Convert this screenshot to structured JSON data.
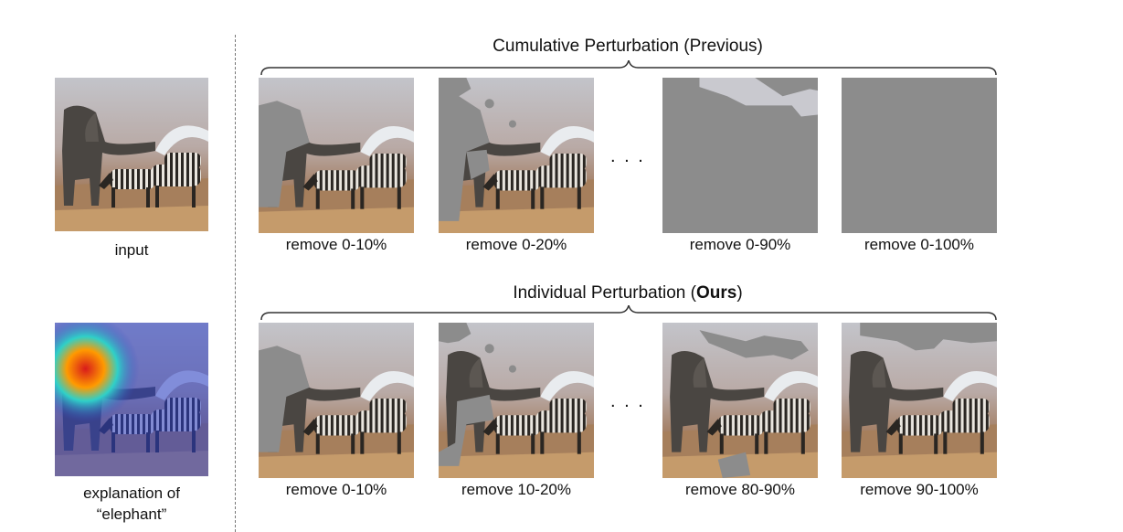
{
  "left": {
    "input_label": "input",
    "explanation_label_line1": "explanation of",
    "explanation_label_line2": "“elephant”"
  },
  "top_row": {
    "title": "Cumulative Perturbation (Previous)",
    "labels": [
      "remove 0-10%",
      "remove 0-20%",
      "remove 0-90%",
      "remove 0-100%"
    ],
    "ellipsis": ". . ."
  },
  "bottom_row": {
    "title_prefix": "Individual Perturbation (",
    "title_bold": "Ours",
    "title_suffix": ")",
    "labels": [
      "remove 0-10%",
      "remove 10-20%",
      "remove 80-90%",
      "remove 90-100%"
    ],
    "ellipsis": ". . ."
  },
  "colors": {
    "mask_gray": "#8c8c8c",
    "sky": "#c9c9cf",
    "ground": "#a8805c"
  }
}
